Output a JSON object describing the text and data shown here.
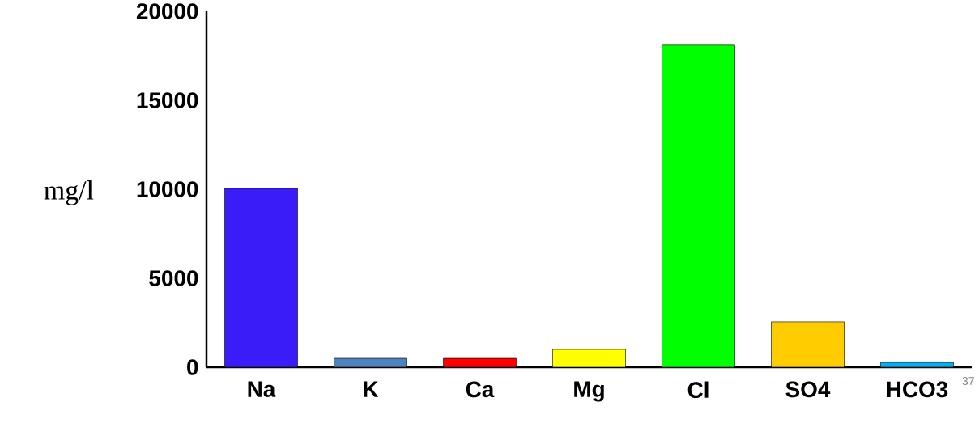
{
  "chart_data": {
    "type": "bar",
    "ylabel": "mg/l",
    "categories": [
      "Na",
      "K",
      "Ca",
      "Mg",
      "Cl",
      "SO4",
      "HCO3"
    ],
    "values": [
      10050,
      500,
      500,
      1000,
      18100,
      2550,
      270
    ],
    "colors": [
      "#3a1cf8",
      "#4f81bd",
      "#ff0000",
      "#ffff00",
      "#00ff00",
      "#ffcc00",
      "#00b0f0"
    ],
    "ylim": [
      0,
      20000
    ],
    "yticks": [
      0,
      5000,
      10000,
      15000,
      20000
    ],
    "annotations": [
      "37"
    ]
  }
}
